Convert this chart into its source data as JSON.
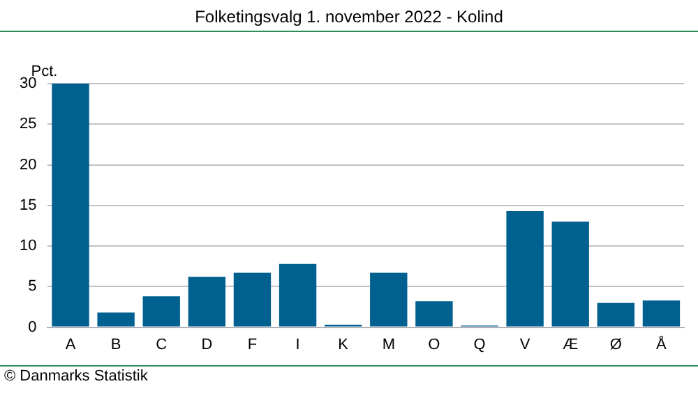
{
  "chart_data": {
    "type": "bar",
    "title": "Folketingsvalg 1. november 2022 - Kolind",
    "ylabel": "Pct.",
    "categories": [
      "A",
      "B",
      "C",
      "D",
      "F",
      "I",
      "K",
      "M",
      "O",
      "Q",
      "V",
      "Æ",
      "Ø",
      "Å"
    ],
    "values": [
      30.0,
      1.8,
      3.8,
      6.2,
      6.7,
      7.8,
      0.3,
      6.7,
      3.2,
      0.2,
      14.3,
      13.0,
      3.0,
      3.3
    ],
    "color": "#006090",
    "ylim": [
      0,
      30
    ],
    "yticks": [
      0,
      5,
      10,
      15,
      20,
      25,
      30
    ],
    "grid": "y",
    "legend": false,
    "annotations": [
      "© Danmarks Statistik"
    ]
  }
}
